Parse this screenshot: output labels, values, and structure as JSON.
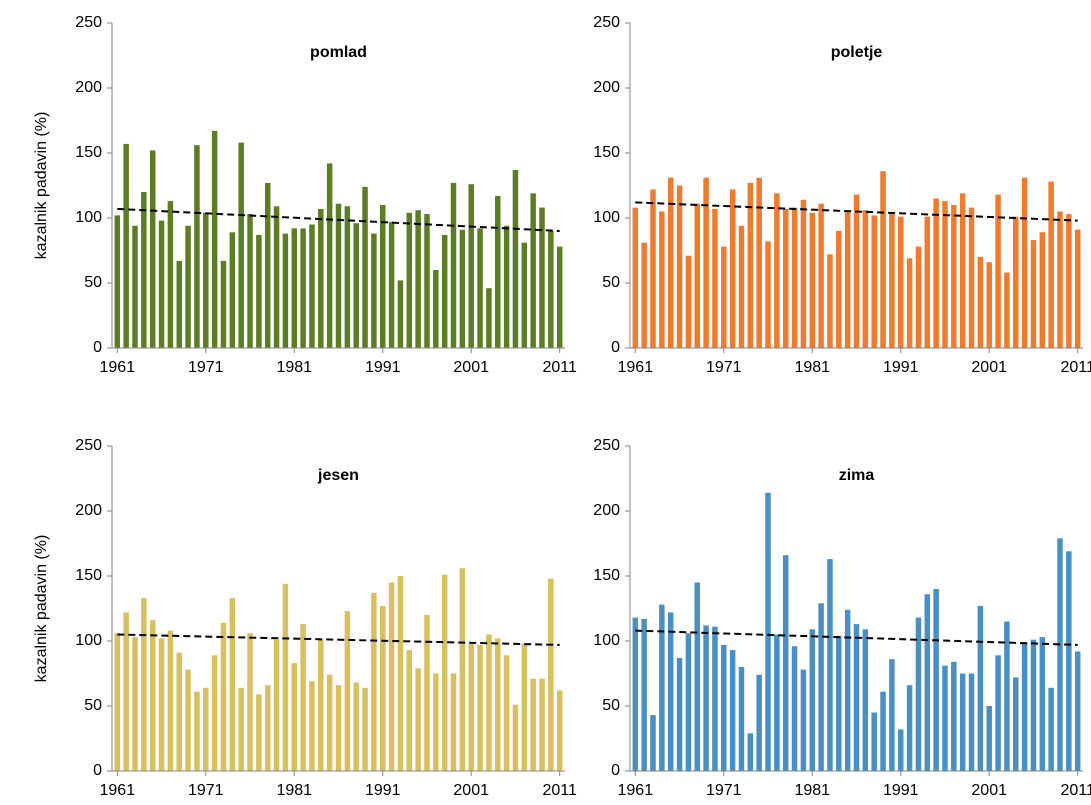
{
  "chart_data": [
    {
      "type": "bar",
      "title": "pomlad",
      "ylabel": "kazalnik padavin (%)",
      "color": "#5b7d23",
      "x": [
        1961,
        1962,
        1963,
        1964,
        1965,
        1966,
        1967,
        1968,
        1969,
        1970,
        1971,
        1972,
        1973,
        1974,
        1975,
        1976,
        1977,
        1978,
        1979,
        1980,
        1981,
        1982,
        1983,
        1984,
        1985,
        1986,
        1987,
        1988,
        1989,
        1990,
        1991,
        1992,
        1993,
        1994,
        1995,
        1996,
        1997,
        1998,
        1999,
        2000,
        2001,
        2002,
        2003,
        2004,
        2005,
        2006,
        2007,
        2008,
        2009,
        2010,
        2011
      ],
      "values": [
        102,
        157,
        94,
        120,
        152,
        98,
        113,
        67,
        94,
        156,
        104,
        167,
        67,
        89,
        158,
        103,
        87,
        127,
        109,
        88,
        92,
        92,
        95,
        107,
        142,
        111,
        109,
        96,
        124,
        88,
        110,
        97,
        52,
        104,
        106,
        103,
        60,
        87,
        127,
        91,
        126,
        92,
        46,
        117,
        94,
        137,
        81,
        119,
        108,
        90,
        78
      ],
      "trend_x": [
        1961,
        2011
      ],
      "trend_y": [
        107,
        90
      ],
      "xlim": [
        1960.4,
        2011.6
      ],
      "xticks": [
        1961,
        1971,
        1981,
        1991,
        2001,
        2011
      ],
      "ylim": [
        0,
        250
      ],
      "yticks": [
        0,
        50,
        100,
        150,
        200,
        250
      ]
    },
    {
      "type": "bar",
      "title": "poletje",
      "color": "#f07a2e",
      "x": [
        1961,
        1962,
        1963,
        1964,
        1965,
        1966,
        1967,
        1968,
        1969,
        1970,
        1971,
        1972,
        1973,
        1974,
        1975,
        1976,
        1977,
        1978,
        1979,
        1980,
        1981,
        1982,
        1983,
        1984,
        1985,
        1986,
        1987,
        1988,
        1989,
        1990,
        1991,
        1992,
        1993,
        1994,
        1995,
        1996,
        1997,
        1998,
        1999,
        2000,
        2001,
        2002,
        2003,
        2004,
        2005,
        2006,
        2007,
        2008,
        2009,
        2010,
        2011
      ],
      "values": [
        108,
        81,
        122,
        105,
        131,
        125,
        71,
        111,
        131,
        107,
        78,
        122,
        94,
        127,
        131,
        82,
        119,
        107,
        108,
        114,
        104,
        111,
        72,
        90,
        105,
        118,
        106,
        102,
        136,
        103,
        101,
        69,
        78,
        101,
        115,
        113,
        110,
        119,
        108,
        70,
        66,
        118,
        58,
        101,
        131,
        83,
        89,
        128,
        105,
        103,
        91
      ],
      "trend_x": [
        1961,
        2011
      ],
      "trend_y": [
        112,
        98
      ],
      "xlim": [
        1960.4,
        2011.6
      ],
      "xticks": [
        1961,
        1971,
        1981,
        1991,
        2001,
        2011
      ],
      "ylim": [
        0,
        250
      ],
      "yticks": [
        0,
        50,
        100,
        150,
        200,
        250
      ]
    },
    {
      "type": "bar",
      "title": "jesen",
      "ylabel": "kazalnik padavin (%)",
      "color": "#d8bf5f",
      "x": [
        1961,
        1962,
        1963,
        1964,
        1965,
        1966,
        1967,
        1968,
        1969,
        1970,
        1971,
        1972,
        1973,
        1974,
        1975,
        1976,
        1977,
        1978,
        1979,
        1980,
        1981,
        1982,
        1983,
        1984,
        1985,
        1986,
        1987,
        1988,
        1989,
        1990,
        1991,
        1992,
        1993,
        1994,
        1995,
        1996,
        1997,
        1998,
        1999,
        2000,
        2001,
        2002,
        2003,
        2004,
        2005,
        2006,
        2007,
        2008,
        2009,
        2010,
        2011
      ],
      "values": [
        106,
        122,
        103,
        133,
        116,
        102,
        108,
        91,
        78,
        61,
        64,
        89,
        114,
        133,
        64,
        106,
        59,
        66,
        101,
        144,
        83,
        113,
        69,
        101,
        74,
        66,
        123,
        68,
        64,
        137,
        127,
        145,
        150,
        93,
        79,
        120,
        75,
        151,
        75,
        156,
        98,
        97,
        105,
        102,
        89,
        51,
        98,
        71,
        71,
        148,
        62
      ],
      "trend_x": [
        1961,
        2011
      ],
      "trend_y": [
        105,
        97
      ],
      "xlim": [
        1960.4,
        2011.6
      ],
      "xticks": [
        1961,
        1971,
        1981,
        1991,
        2001,
        2011
      ],
      "ylim": [
        0,
        250
      ],
      "yticks": [
        0,
        50,
        100,
        150,
        200,
        250
      ]
    },
    {
      "type": "bar",
      "title": "zima",
      "color": "#4a8fc4",
      "x": [
        1961,
        1962,
        1963,
        1964,
        1965,
        1966,
        1967,
        1968,
        1969,
        1970,
        1971,
        1972,
        1973,
        1974,
        1975,
        1976,
        1977,
        1978,
        1979,
        1980,
        1981,
        1982,
        1983,
        1984,
        1985,
        1986,
        1987,
        1988,
        1989,
        1990,
        1991,
        1992,
        1993,
        1994,
        1995,
        1996,
        1997,
        1998,
        1999,
        2000,
        2001,
        2002,
        2003,
        2004,
        2005,
        2006,
        2007,
        2008,
        2009,
        2010,
        2011
      ],
      "values": [
        118,
        117,
        43,
        128,
        122,
        87,
        106,
        145,
        112,
        111,
        97,
        93,
        80,
        29,
        74,
        214,
        105,
        166,
        96,
        78,
        109,
        129,
        163,
        104,
        124,
        113,
        109,
        45,
        61,
        86,
        32,
        66,
        118,
        136,
        140,
        81,
        84,
        75,
        75,
        127,
        50,
        89,
        115,
        72,
        99,
        101,
        103,
        64,
        179,
        169,
        92
      ],
      "trend_x": [
        1961,
        2011
      ],
      "trend_y": [
        108,
        97
      ],
      "xlim": [
        1960.4,
        2011.6
      ],
      "xticks": [
        1961,
        1971,
        1981,
        1991,
        2001,
        2011
      ],
      "ylim": [
        0,
        250
      ],
      "yticks": [
        0,
        50,
        100,
        150,
        200,
        250
      ]
    }
  ]
}
